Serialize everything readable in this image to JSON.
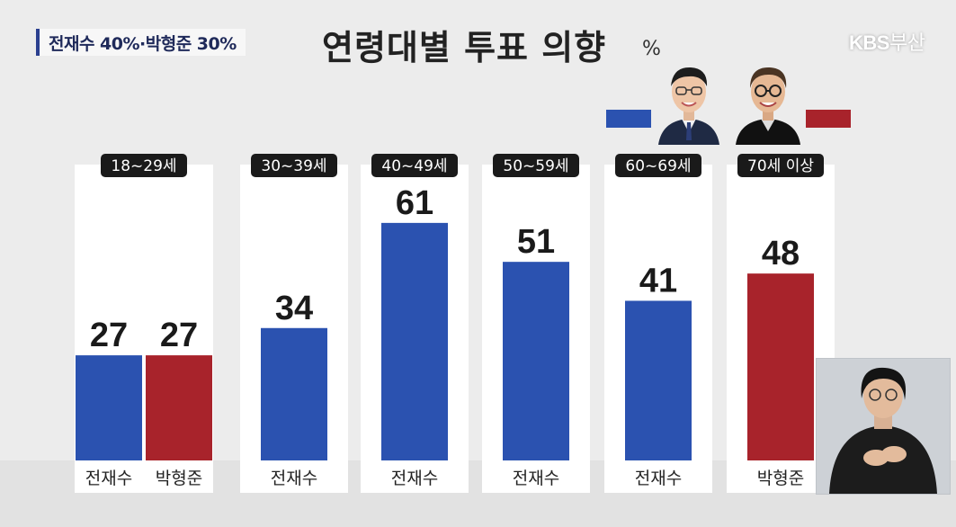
{
  "headline": "전재수 40%·박형준 30%",
  "title": "연령대별 투표 의향",
  "unit": "%",
  "logo": {
    "brand": "KBS",
    "region": "부산"
  },
  "colors": {
    "blue": "#2b52b0",
    "red": "#a8232b",
    "panel": "#ffffff",
    "tag": "#1a1a1a"
  },
  "legend": [
    {
      "candidate": "전재수",
      "color": "#2b52b0",
      "icon": "man-portrait-glasses-icon"
    },
    {
      "candidate": "박형준",
      "color": "#a8232b",
      "icon": "man-portrait-round-glasses-icon"
    }
  ],
  "chart_data": {
    "type": "bar",
    "categories": [
      "18~29세",
      "30~39세",
      "40~49세",
      "50~59세",
      "60~69세",
      "70세 이상"
    ],
    "ylim": [
      0,
      100
    ],
    "bars": [
      {
        "category": "18~29세",
        "candidate": "전재수",
        "value": 27,
        "color": "#2b52b0"
      },
      {
        "category": "18~29세",
        "candidate": "박형준",
        "value": 27,
        "color": "#a8232b"
      },
      {
        "category": "30~39세",
        "candidate": "전재수",
        "value": 34,
        "color": "#2b52b0"
      },
      {
        "category": "40~49세",
        "candidate": "전재수",
        "value": 61,
        "color": "#2b52b0"
      },
      {
        "category": "50~59세",
        "candidate": "전재수",
        "value": 51,
        "color": "#2b52b0"
      },
      {
        "category": "60~69세",
        "candidate": "전재수",
        "value": 41,
        "color": "#2b52b0"
      },
      {
        "category": "70세 이상",
        "candidate": "박형준",
        "value": 48,
        "color": "#a8232b"
      }
    ]
  }
}
